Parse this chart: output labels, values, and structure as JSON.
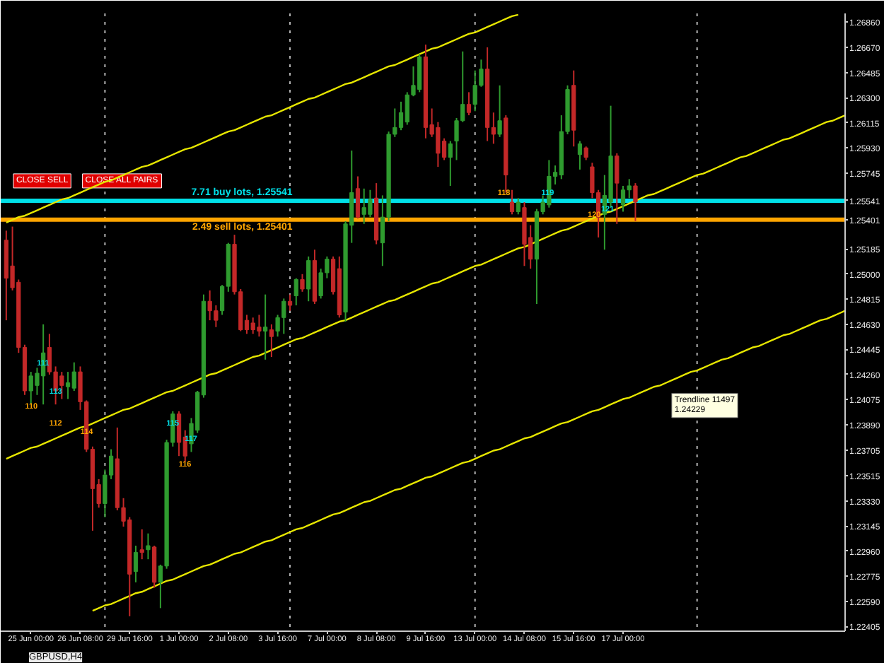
{
  "chart_data": {
    "type": "candlestick",
    "title": "GBPUSD,H4",
    "categories": [
      null,
      null,
      null,
      null,
      "25 Jun 00:00",
      null,
      null,
      null,
      null,
      null,
      null,
      null,
      "26 Jun 08:00",
      null,
      null,
      null,
      null,
      null,
      null,
      null,
      "29 Jun 16:00",
      null,
      null,
      null,
      null,
      null,
      null,
      null,
      "1 Jul 00:00",
      null,
      null,
      null,
      null,
      null,
      null,
      null,
      "2 Jul 08:00",
      null,
      null,
      null,
      null,
      null,
      null,
      null,
      "3 Jul 16:00",
      null,
      null,
      null,
      null,
      null,
      null,
      null,
      "7 Jul 00:00",
      null,
      null,
      null,
      null,
      null,
      null,
      null,
      "8 Jul 08:00",
      null,
      null,
      null,
      null,
      null,
      null,
      null,
      "9 Jul 16:00",
      null,
      null,
      null,
      null,
      null,
      null,
      null,
      "13 Jul 00:00",
      null,
      null,
      null,
      null,
      null,
      null,
      null,
      "14 Jul 08:00",
      null,
      null,
      null,
      null,
      null,
      null,
      null,
      "15 Jul 16:00",
      null,
      null,
      null,
      null,
      null,
      null,
      null,
      "17 Jul 00:00",
      null,
      null,
      null,
      null,
      null,
      null,
      null,
      null,
      null,
      null,
      null,
      null,
      null,
      null,
      null,
      null,
      null,
      null,
      null,
      null,
      null,
      null,
      null,
      null,
      null,
      null,
      null,
      null,
      null,
      null,
      null,
      null,
      null,
      null,
      null,
      null
    ],
    "ohlc": [
      [
        1.2525,
        1.2532,
        1.2466,
        1.2497
      ],
      [
        1.2506,
        1.2535,
        1.2488,
        1.249
      ],
      [
        1.2494,
        1.2496,
        1.2442,
        1.2446
      ],
      [
        1.2446,
        1.2448,
        1.2411,
        1.2414
      ],
      [
        1.2414,
        1.2428,
        1.2404,
        1.2425
      ],
      [
        1.2418,
        1.2431,
        1.2411,
        1.2427
      ],
      [
        1.2425,
        1.2463,
        1.2404,
        1.2442
      ],
      [
        1.2446,
        1.2456,
        1.2426,
        1.2428
      ],
      [
        1.2428,
        1.2432,
        1.2404,
        1.2414
      ],
      [
        1.2425,
        1.2428,
        1.2408,
        1.2418
      ],
      [
        1.2417,
        1.2428,
        1.2408,
        1.242
      ],
      [
        1.2416,
        1.2435,
        1.2414,
        1.2428
      ],
      [
        1.2428,
        1.2432,
        1.24,
        1.2406
      ],
      [
        1.2406,
        1.2407,
        1.2369,
        1.2371
      ],
      [
        1.2371,
        1.2373,
        1.2311,
        1.2342
      ],
      [
        1.2345,
        1.2349,
        1.2328,
        1.2331
      ],
      [
        1.2331,
        1.2356,
        1.2321,
        1.2352
      ],
      [
        1.2352,
        1.2371,
        1.2349,
        1.2366
      ],
      [
        1.2364,
        1.2387,
        1.2326,
        1.2328
      ],
      [
        1.2328,
        1.2335,
        1.2314,
        1.2318
      ],
      [
        1.2319,
        1.2321,
        1.2248,
        1.2279
      ],
      [
        1.2281,
        1.23,
        1.2273,
        1.2295
      ],
      [
        1.2297,
        1.2312,
        1.229,
        1.2295
      ],
      [
        1.2297,
        1.2309,
        1.229,
        1.23
      ],
      [
        1.2299,
        1.23,
        1.2269,
        1.2273
      ],
      [
        1.2273,
        1.2286,
        1.2254,
        1.2285
      ],
      [
        1.2285,
        1.2378,
        1.2283,
        1.2376
      ],
      [
        1.2376,
        1.2399,
        1.2373,
        1.2397
      ],
      [
        1.2397,
        1.2399,
        1.2366,
        1.2376
      ],
      [
        1.238,
        1.2385,
        1.2362,
        1.2366
      ],
      [
        1.2375,
        1.2394,
        1.2369,
        1.239
      ],
      [
        1.2385,
        1.2414,
        1.2383,
        1.2413
      ],
      [
        1.2411,
        1.2485,
        1.2409,
        1.248
      ],
      [
        1.248,
        1.2488,
        1.2466,
        1.2473
      ],
      [
        1.2473,
        1.2477,
        1.2461,
        1.2466
      ],
      [
        1.2473,
        1.2492,
        1.247,
        1.2491
      ],
      [
        1.2491,
        1.2523,
        1.2487,
        1.2522
      ],
      [
        1.2522,
        1.2529,
        1.2485,
        1.2487
      ],
      [
        1.2487,
        1.2489,
        1.2458,
        1.2459
      ],
      [
        1.2466,
        1.247,
        1.2456,
        1.2459
      ],
      [
        1.2464,
        1.2468,
        1.2456,
        1.2459
      ],
      [
        1.2461,
        1.247,
        1.2454,
        1.2458
      ],
      [
        1.2458,
        1.2485,
        1.2437,
        1.2461
      ],
      [
        1.2459,
        1.2463,
        1.2439,
        1.2454
      ],
      [
        1.2458,
        1.247,
        1.2454,
        1.2468
      ],
      [
        1.2468,
        1.2482,
        1.2456,
        1.248
      ],
      [
        1.248,
        1.2485,
        1.2473,
        1.2477
      ],
      [
        1.2484,
        1.2497,
        1.2477,
        1.2496
      ],
      [
        1.2496,
        1.25,
        1.2487,
        1.2489
      ],
      [
        1.2489,
        1.2513,
        1.248,
        1.251
      ],
      [
        1.251,
        1.2518,
        1.2478,
        1.248
      ],
      [
        1.2484,
        1.2504,
        1.2482,
        1.2501
      ],
      [
        1.2501,
        1.2513,
        1.2497,
        1.2511
      ],
      [
        1.2511,
        1.2513,
        1.2485,
        1.2487
      ],
      [
        1.2504,
        1.2513,
        1.2468,
        1.247
      ],
      [
        1.2472,
        1.2539,
        1.2465,
        1.2537
      ],
      [
        1.2536,
        1.2591,
        1.2523,
        1.256
      ],
      [
        1.2563,
        1.2572,
        1.2541,
        1.2542
      ],
      [
        1.2544,
        1.2563,
        1.2537,
        1.2549
      ],
      [
        1.2544,
        1.2562,
        1.2542,
        1.2555
      ],
      [
        1.2556,
        1.2567,
        1.2522,
        1.2525
      ],
      [
        1.2523,
        1.2558,
        1.2506,
        1.2542
      ],
      [
        1.2542,
        1.2605,
        1.2539,
        1.2603
      ],
      [
        1.2603,
        1.2622,
        1.2601,
        1.2608
      ],
      [
        1.2608,
        1.2627,
        1.2606,
        1.2619
      ],
      [
        1.2612,
        1.2634,
        1.261,
        1.2632
      ],
      [
        1.2632,
        1.2653,
        1.2631,
        1.2639
      ],
      [
        1.2636,
        1.2662,
        1.2634,
        1.266
      ],
      [
        1.266,
        1.2669,
        1.26,
        1.2608
      ],
      [
        1.261,
        1.2622,
        1.2601,
        1.2603
      ],
      [
        1.2608,
        1.2612,
        1.2579,
        1.2589
      ],
      [
        1.2598,
        1.26,
        1.2584,
        1.2586
      ],
      [
        1.2586,
        1.2598,
        1.2565,
        1.2596
      ],
      [
        1.2598,
        1.2615,
        1.2584,
        1.2613
      ],
      [
        1.2613,
        1.2664,
        1.2612,
        1.2625
      ],
      [
        1.2625,
        1.2634,
        1.2617,
        1.2619
      ],
      [
        1.2625,
        1.265,
        1.262,
        1.2639
      ],
      [
        1.2639,
        1.2658,
        1.2638,
        1.2651
      ],
      [
        1.2651,
        1.2667,
        1.2598,
        1.2608
      ],
      [
        1.2608,
        1.2619,
        1.2596,
        1.2603
      ],
      [
        1.2603,
        1.2639,
        1.2601,
        1.2613
      ],
      [
        1.2615,
        1.2617,
        1.256,
        1.2573
      ],
      [
        1.2553,
        1.2562,
        1.2544,
        1.2546
      ],
      [
        1.2546,
        1.2556,
        1.2544,
        1.2553
      ],
      [
        1.2549,
        1.2553,
        1.2506,
        1.2522
      ],
      [
        1.2527,
        1.2536,
        1.2504,
        1.2511
      ],
      [
        1.2511,
        1.2548,
        1.2478,
        1.2546
      ],
      [
        1.2546,
        1.2558,
        1.2544,
        1.2553
      ],
      [
        1.2551,
        1.2584,
        1.2549,
        1.2572
      ],
      [
        1.2572,
        1.258,
        1.2566,
        1.2575
      ],
      [
        1.2573,
        1.2617,
        1.257,
        1.2605
      ],
      [
        1.2605,
        1.2639,
        1.2603,
        1.2636
      ],
      [
        1.2639,
        1.265,
        1.2594,
        1.2606
      ],
      [
        1.2588,
        1.2598,
        1.2577,
        1.2596
      ],
      [
        1.2593,
        1.2594,
        1.2584,
        1.2586
      ],
      [
        1.2579,
        1.2582,
        1.2556,
        1.256
      ],
      [
        1.256,
        1.2562,
        1.2527,
        1.2542
      ],
      [
        1.2544,
        1.2573,
        1.2518,
        1.2558
      ],
      [
        1.2553,
        1.2624,
        1.2549,
        1.2587
      ],
      [
        1.2587,
        1.2589,
        1.2537,
        1.2567
      ],
      [
        1.2551,
        1.2565,
        1.2546,
        1.2562
      ],
      [
        1.2562,
        1.257,
        1.2556,
        1.2565
      ],
      [
        1.2565,
        1.2567,
        1.2539,
        1.2553
      ],
      null,
      null,
      null,
      null,
      null,
      null,
      null,
      null,
      null,
      null,
      null,
      null,
      null,
      null,
      null,
      null,
      null,
      null,
      null,
      null,
      null,
      null,
      null,
      null,
      null,
      null,
      null,
      null,
      null,
      null,
      null,
      null,
      null,
      null
    ],
    "colors": [
      "#c32828",
      "#c32828",
      "#c32828",
      "#c32828",
      "#2f9b2f",
      "#2f9b2f",
      "#2f9b2f",
      "#c32828",
      "#c32828",
      "#c32828",
      "#2f9b2f",
      "#2f9b2f",
      "#c32828",
      "#c32828",
      "#c32828",
      "#c32828",
      "#2f9b2f",
      "#2f9b2f",
      "#c32828",
      "#c32828",
      "#c32828",
      "#2f9b2f",
      "#c32828",
      "#2f9b2f",
      "#c32828",
      "#2f9b2f",
      "#2f9b2f",
      "#2f9b2f",
      "#c32828",
      "#c32828",
      "#2f9b2f",
      "#2f9b2f",
      "#2f9b2f",
      "#c32828",
      "#c32828",
      "#2f9b2f",
      "#2f9b2f",
      "#c32828",
      "#c32828",
      "#c32828",
      "#c32828",
      "#c32828",
      "#2f9b2f",
      "#c32828",
      "#2f9b2f",
      "#2f9b2f",
      "#c32828",
      "#2f9b2f",
      "#c32828",
      "#2f9b2f",
      "#c32828",
      "#2f9b2f",
      "#2f9b2f",
      "#c32828",
      "#c32828",
      "#2f9b2f",
      "#2f9b2f",
      "#c32828",
      "#2f9b2f",
      "#2f9b2f",
      "#c32828",
      "#2f9b2f",
      "#2f9b2f",
      "#2f9b2f",
      "#2f9b2f",
      "#2f9b2f",
      "#2f9b2f",
      "#2f9b2f",
      "#c32828",
      "#c32828",
      "#c32828",
      "#c32828",
      "#2f9b2f",
      "#2f9b2f",
      "#2f9b2f",
      "#c32828",
      "#2f9b2f",
      "#2f9b2f",
      "#c32828",
      "#c32828",
      "#2f9b2f",
      "#c32828",
      "#c32828",
      "#2f9b2f",
      "#c32828",
      "#c32828",
      "#2f9b2f",
      "#2f9b2f",
      "#2f9b2f",
      "#2f9b2f",
      "#2f9b2f",
      "#2f9b2f",
      "#c32828",
      "#2f9b2f",
      "#c32828",
      "#c32828",
      "#c32828",
      "#2f9b2f",
      "#2f9b2f",
      "#c32828",
      "#2f9b2f",
      "#2f9b2f",
      "#c32828",
      null,
      null,
      null,
      null,
      null,
      null,
      null,
      null,
      null,
      null,
      null,
      null,
      null,
      null,
      null,
      null,
      null,
      null,
      null,
      null,
      null,
      null,
      null,
      null,
      null,
      null,
      null,
      null,
      null,
      null,
      null,
      null,
      null,
      null
    ],
    "series": [
      {
        "type": "line",
        "color": "#e6e600",
        "values": [
          1.2538,
          1.254,
          1.2542,
          1.2543,
          1.2545,
          1.2547,
          1.2549,
          1.2551,
          1.2553,
          1.2555,
          1.2556,
          1.2558,
          1.256,
          1.2562,
          1.2564,
          1.2566,
          1.2568,
          1.2569,
          1.2571,
          1.2573,
          1.2575,
          1.2577,
          1.2579,
          1.258,
          1.2582,
          1.2584,
          1.2586,
          1.2588,
          1.259,
          1.2592,
          1.2593,
          1.2595,
          1.2597,
          1.2599,
          1.2601,
          1.2603,
          1.2605,
          1.2606,
          1.2608,
          1.261,
          1.2612,
          1.2614,
          1.2616,
          1.2617,
          1.2619,
          1.2621,
          1.2623,
          1.2625,
          1.2627,
          1.2629,
          1.263,
          1.2632,
          1.2634,
          1.2636,
          1.2638,
          1.264,
          1.2641,
          1.2643,
          1.2645,
          1.2647,
          1.2649,
          1.2651,
          1.2653,
          1.2654,
          1.2656,
          1.2658,
          1.266,
          1.2662,
          1.2664,
          1.2666,
          1.2667,
          1.2669,
          1.2671,
          1.2673,
          1.2675,
          1.2677,
          1.2678,
          1.268,
          1.2682,
          1.2684,
          1.2686,
          1.2688,
          1.269,
          1.2691,
          null,
          null,
          null,
          null,
          null,
          null,
          null,
          null,
          null,
          null,
          null,
          null,
          null,
          null,
          null,
          null,
          null,
          null,
          null,
          null,
          null,
          null,
          null,
          null,
          null,
          null,
          null,
          null,
          null,
          null,
          null,
          null,
          null,
          null,
          null,
          null,
          null,
          null,
          null,
          null,
          null,
          null,
          null,
          null,
          null,
          null,
          null,
          null,
          null,
          null,
          null,
          null,
          null
        ]
      },
      {
        "type": "line",
        "color": "#e6e600",
        "values": [
          1.2364,
          1.2366,
          1.2368,
          1.237,
          1.2372,
          1.2373,
          1.2375,
          1.2377,
          1.2379,
          1.2381,
          1.2383,
          1.2385,
          1.2387,
          1.2388,
          1.239,
          1.2392,
          1.2394,
          1.2396,
          1.2398,
          1.24,
          1.2401,
          1.2403,
          1.2405,
          1.2407,
          1.2409,
          1.2411,
          1.2413,
          1.2414,
          1.2416,
          1.2418,
          1.242,
          1.2422,
          1.2424,
          1.2426,
          1.2427,
          1.2429,
          1.2431,
          1.2433,
          1.2435,
          1.2437,
          1.2439,
          1.244,
          1.2442,
          1.2444,
          1.2446,
          1.2448,
          1.245,
          1.2452,
          1.2453,
          1.2455,
          1.2457,
          1.2459,
          1.2461,
          1.2463,
          1.2465,
          1.2466,
          1.2468,
          1.247,
          1.2472,
          1.2474,
          1.2476,
          1.2478,
          1.248,
          1.2481,
          1.2483,
          1.2485,
          1.2487,
          1.2489,
          1.2491,
          1.2493,
          1.2494,
          1.2496,
          1.2498,
          1.25,
          1.2502,
          1.2504,
          1.2506,
          1.2507,
          1.2509,
          1.2511,
          1.2513,
          1.2515,
          1.2517,
          1.2519,
          1.252,
          1.2522,
          1.2524,
          1.2526,
          1.2528,
          1.253,
          1.2532,
          1.2533,
          1.2535,
          1.2537,
          1.2539,
          1.2541,
          1.2543,
          1.2545,
          1.2546,
          1.2548,
          1.255,
          1.2552,
          1.2554,
          1.2556,
          1.2558,
          1.2559,
          1.2561,
          1.2563,
          1.2565,
          1.2567,
          1.2569,
          1.2571,
          1.2573,
          1.2574,
          1.2576,
          1.2578,
          1.258,
          1.2582,
          1.2584,
          1.2586,
          1.2587,
          1.2589,
          1.2591,
          1.2593,
          1.2595,
          1.2597,
          1.2599,
          1.26,
          1.2602,
          1.2604,
          1.2606,
          1.2608,
          1.261,
          1.2612,
          1.2613,
          1.2615,
          1.2617
        ]
      },
      {
        "type": "line",
        "color": "#e6e600",
        "values": [
          null,
          null,
          null,
          null,
          null,
          null,
          null,
          null,
          null,
          null,
          null,
          null,
          null,
          null,
          1.2252,
          1.2254,
          1.2256,
          1.2257,
          1.2259,
          1.2261,
          1.2263,
          1.2265,
          1.2266,
          1.2268,
          1.227,
          1.2272,
          1.2274,
          1.2275,
          1.2277,
          1.2279,
          1.2281,
          1.2283,
          1.2285,
          1.2286,
          1.2288,
          1.229,
          1.2292,
          1.2294,
          1.2295,
          1.2297,
          1.2299,
          1.2301,
          1.2303,
          1.2304,
          1.2306,
          1.2308,
          1.231,
          1.2312,
          1.2313,
          1.2315,
          1.2317,
          1.2319,
          1.2321,
          1.2323,
          1.2324,
          1.2326,
          1.2328,
          1.233,
          1.2332,
          1.2333,
          1.2335,
          1.2337,
          1.2339,
          1.2341,
          1.2342,
          1.2344,
          1.2346,
          1.2348,
          1.235,
          1.2351,
          1.2353,
          1.2355,
          1.2357,
          1.2359,
          1.2361,
          1.2362,
          1.2364,
          1.2366,
          1.2368,
          1.237,
          1.2371,
          1.2373,
          1.2375,
          1.2377,
          1.2379,
          1.238,
          1.2382,
          1.2384,
          1.2386,
          1.2388,
          1.239,
          1.2391,
          1.2393,
          1.2395,
          1.2397,
          1.2399,
          1.24,
          1.2402,
          1.2404,
          1.2406,
          1.2408,
          1.2409,
          1.2411,
          1.2413,
          1.2415,
          1.2417,
          1.2418,
          1.242,
          1.2422,
          1.2424,
          1.2426,
          1.2428,
          1.2429,
          1.2431,
          1.2433,
          1.2435,
          1.2437,
          1.2438,
          1.244,
          1.2442,
          1.2444,
          1.2446,
          1.2447,
          1.2449,
          1.2451,
          1.2453,
          1.2455,
          1.2456,
          1.2458,
          1.246,
          1.2462,
          1.2464,
          1.2466,
          1.2467,
          1.2469,
          1.2471,
          1.2473
        ]
      }
    ],
    "ylim": [
      1.2237,
      1.2692
    ],
    "yticks": [
      {
        "value": 1.2686,
        "label": "1.26860"
      },
      {
        "value": 1.2667,
        "label": "1.26670"
      },
      1.26485,
      {
        "value": 1.263,
        "label": "1.26300"
      },
      1.26115,
      {
        "value": 1.2593,
        "label": "1.25930"
      },
      1.25745,
      1.25541,
      1.25401,
      1.25185,
      {
        "value": 1.25,
        "label": "1.25000"
      },
      1.24815,
      {
        "value": 1.2463,
        "label": "1.24630"
      },
      1.24445,
      {
        "value": 1.2426,
        "label": "1.24260"
      },
      1.24075,
      {
        "value": 1.2389,
        "label": "1.23890"
      },
      1.23705,
      1.23515,
      {
        "value": 1.2333,
        "label": "1.23330"
      },
      1.23145,
      {
        "value": 1.2296,
        "label": "1.22960"
      },
      1.22775,
      {
        "value": 1.2259,
        "label": "1.22590"
      },
      1.22405
    ],
    "ref_lines": [
      {
        "axis": "y",
        "value": 1.25541,
        "label": "7.71 buy lots, 1.25541",
        "color": "#00e0e8"
      },
      {
        "axis": "y",
        "value": 1.25401,
        "label": "2.49 sell lots, 1.25401",
        "color": "#ffa500"
      }
    ],
    "annotations": [
      "CLOSE SELL",
      "CLOSE ALL PAIRS",
      "110",
      "111",
      "113",
      "112",
      "114",
      "115",
      "116",
      "117",
      "118",
      "119",
      "120",
      "121",
      "Trendline 11497\n1.24229"
    ]
  }
}
